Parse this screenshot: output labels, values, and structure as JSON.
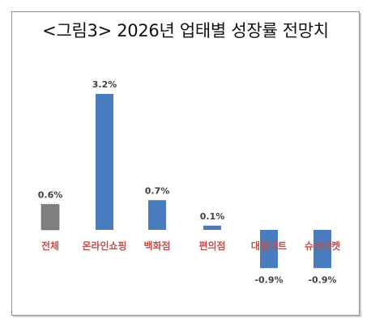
{
  "chart_data": {
    "type": "bar",
    "title": "<그림3> 2026년 업태별 성장률 전망치",
    "categories": [
      "전체",
      "온라인쇼핑",
      "백화점",
      "편의점",
      "대형마트",
      "슈퍼마켓"
    ],
    "values": [
      0.6,
      3.2,
      0.7,
      0.1,
      -0.9,
      -0.9
    ],
    "value_labels": [
      "0.6%",
      "3.2%",
      "0.7%",
      "0.1%",
      "-0.9%",
      "-0.9%"
    ],
    "value_unit": "%",
    "highlight_category": "전체",
    "colors": {
      "bar": "#4a7cc0",
      "highlight": "#7f7f7f",
      "category_text": "#c0504d",
      "value_text": "#404040"
    },
    "grid": false,
    "legend": "none"
  }
}
